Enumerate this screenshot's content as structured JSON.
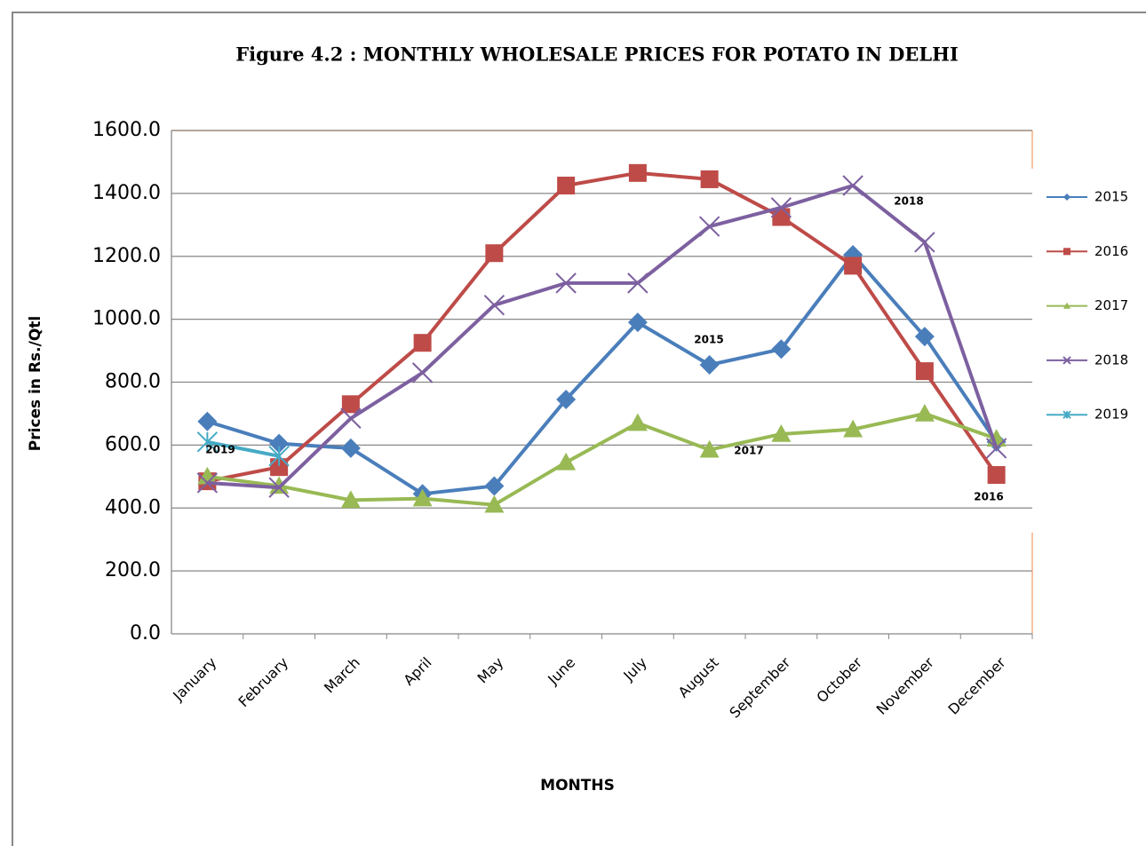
{
  "chart_data": {
    "type": "line",
    "title": "Figure 4.2 : MONTHLY WHOLESALE PRICES FOR POTATO IN DELHI",
    "x_label": "MONTHS",
    "y_label": "Prices in Rs./Qtl",
    "categories": [
      "January",
      "February",
      "March",
      "April",
      "May",
      "June",
      "July",
      "August",
      "September",
      "October",
      "November",
      "December"
    ],
    "series": [
      {
        "name": "2015",
        "color": "#4a7ebb",
        "values": [
          675,
          605,
          590,
          445,
          470,
          745,
          990,
          855,
          905,
          1205,
          945,
          610
        ]
      },
      {
        "name": "2016",
        "color": "#be4b48",
        "values": [
          485,
          530,
          730,
          925,
          1210,
          1425,
          1465,
          1445,
          1325,
          1170,
          835,
          505
        ]
      },
      {
        "name": "2017",
        "color": "#98b954",
        "values": [
          500,
          470,
          425,
          430,
          410,
          545,
          670,
          585,
          635,
          650,
          700,
          620
        ]
      },
      {
        "name": "2018",
        "color": "#7d60a0",
        "values": [
          480,
          465,
          685,
          830,
          1045,
          1115,
          1115,
          1295,
          1355,
          1425,
          1245,
          590
        ]
      },
      {
        "name": "2019",
        "color": "#46aac5",
        "values": [
          610,
          565,
          null,
          null,
          null,
          null,
          null,
          null,
          null,
          null,
          null,
          null
        ]
      }
    ],
    "annotations": [
      "2015",
      "2018",
      "2017",
      "2019",
      "2016"
    ],
    "ylim": [
      0,
      1600
    ],
    "yticks": [
      {
        "value": 0,
        "label": "0.0"
      },
      {
        "value": 200,
        "label": "200.0"
      },
      {
        "value": 400,
        "label": "400.0"
      },
      {
        "value": 600,
        "label": "600.0"
      },
      {
        "value": 800,
        "label": "800.0"
      },
      {
        "value": 1000,
        "label": "1000.0"
      },
      {
        "value": 1200,
        "label": "1200.0"
      },
      {
        "value": 1400,
        "label": "1400.0"
      },
      {
        "value": 1600,
        "label": "1600.0"
      }
    ],
    "grid": true,
    "legend": "right"
  }
}
